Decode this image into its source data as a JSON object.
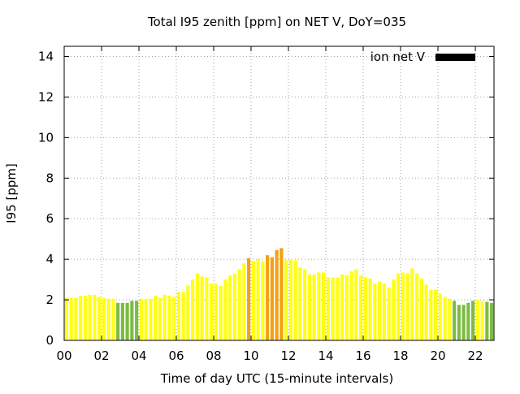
{
  "chart_data": {
    "type": "bar",
    "title": "Total I95 zenith [ppm] on NET V, DoY=035",
    "xlabel": "Time of day UTC (15-minute intervals)",
    "ylabel": "I95 [ppm]",
    "ylim": [
      0,
      14.5
    ],
    "xlim": [
      0,
      23
    ],
    "x_ticks": [
      "00",
      "02",
      "04",
      "06",
      "08",
      "10",
      "12",
      "14",
      "16",
      "18",
      "20",
      "22"
    ],
    "y_ticks": [
      "0",
      "2",
      "4",
      "6",
      "8",
      "10",
      "12",
      "14"
    ],
    "grid": true,
    "legend": {
      "position": "top-right",
      "entries": [
        {
          "label": "ion net V",
          "color": "#000000"
        }
      ]
    },
    "bar_interval_hours": 0.25,
    "colors": {
      "green": "#7dbb42",
      "yellow": "#ffff14",
      "orange": "#f4a011"
    },
    "series": [
      {
        "name": "ion net V",
        "values": [
          2.1,
          2.1,
          2.1,
          2.2,
          2.2,
          2.25,
          2.25,
          2.15,
          2.1,
          2.05,
          2.05,
          1.85,
          1.85,
          1.85,
          1.95,
          1.95,
          2.05,
          2.05,
          2.05,
          2.2,
          2.1,
          2.25,
          2.2,
          2.15,
          2.4,
          2.4,
          2.7,
          3.0,
          3.3,
          3.15,
          3.1,
          2.8,
          2.8,
          2.7,
          3.0,
          3.2,
          3.3,
          3.5,
          3.8,
          4.05,
          3.9,
          4.0,
          3.9,
          4.2,
          4.1,
          4.45,
          4.55,
          3.95,
          4.0,
          3.95,
          3.6,
          3.5,
          3.25,
          3.25,
          3.35,
          3.35,
          3.1,
          3.1,
          3.1,
          3.25,
          3.2,
          3.4,
          3.5,
          3.2,
          3.1,
          3.05,
          2.8,
          2.9,
          2.8,
          2.6,
          3.0,
          3.3,
          3.35,
          3.3,
          3.55,
          3.3,
          3.05,
          2.75,
          2.5,
          2.5,
          2.3,
          2.15,
          2.05,
          1.95,
          1.75,
          1.75,
          1.85,
          1.95,
          2.0,
          1.95,
          1.9,
          1.85
        ],
        "colors": [
          "yellow",
          "yellow",
          "yellow",
          "yellow",
          "yellow",
          "yellow",
          "yellow",
          "yellow",
          "yellow",
          "yellow",
          "yellow",
          "green",
          "green",
          "green",
          "green",
          "green",
          "yellow",
          "yellow",
          "yellow",
          "yellow",
          "yellow",
          "yellow",
          "yellow",
          "yellow",
          "yellow",
          "yellow",
          "yellow",
          "yellow",
          "yellow",
          "yellow",
          "yellow",
          "yellow",
          "yellow",
          "yellow",
          "yellow",
          "yellow",
          "yellow",
          "yellow",
          "yellow",
          "orange",
          "yellow",
          "yellow",
          "yellow",
          "orange",
          "orange",
          "orange",
          "orange",
          "yellow",
          "yellow",
          "yellow",
          "yellow",
          "yellow",
          "yellow",
          "yellow",
          "yellow",
          "yellow",
          "yellow",
          "yellow",
          "yellow",
          "yellow",
          "yellow",
          "yellow",
          "yellow",
          "yellow",
          "yellow",
          "yellow",
          "yellow",
          "yellow",
          "yellow",
          "yellow",
          "yellow",
          "yellow",
          "yellow",
          "yellow",
          "yellow",
          "yellow",
          "yellow",
          "yellow",
          "yellow",
          "yellow",
          "yellow",
          "yellow",
          "yellow",
          "green",
          "green",
          "green",
          "green",
          "green",
          "yellow",
          "yellow",
          "green",
          "green"
        ]
      }
    ]
  }
}
